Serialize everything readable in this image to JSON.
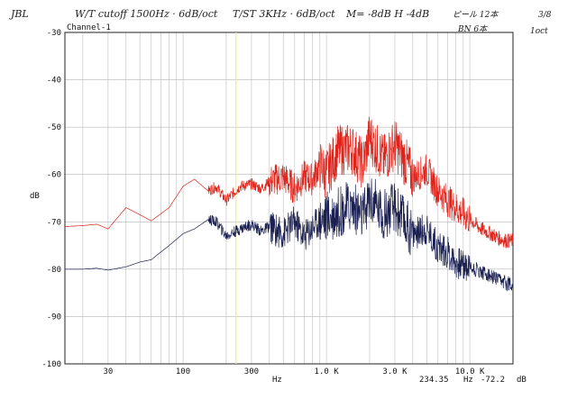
{
  "chart_data": {
    "type": "line",
    "title": "",
    "channel_label": "Channel-1",
    "xlabel": "Hz",
    "ylabel": "dB",
    "x_scale": "log",
    "xlim": [
      15,
      20000
    ],
    "ylim": [
      -100,
      -30
    ],
    "y_ticks": [
      -30,
      -40,
      -50,
      -60,
      -70,
      -80,
      -90,
      -100
    ],
    "y_tick_labels": [
      "-30",
      "-40",
      "-50",
      "-60",
      "-70",
      "-80",
      "-90",
      "-100"
    ],
    "x_ticks": [
      30,
      100,
      300,
      1000,
      3000,
      10000
    ],
    "x_tick_labels": [
      "30",
      "100",
      "300",
      "1.0 K",
      "3.0 K",
      "10.0 K"
    ],
    "grid": true,
    "legend": "none",
    "cursor": {
      "x": 234.35,
      "label": "234.35",
      "unit": "Hz",
      "value_label": "-72.2",
      "value_unit": "dB",
      "color": "#f0e68c"
    },
    "series": [
      {
        "color": "#e0241b",
        "x": [
          15,
          20,
          25,
          30,
          40,
          50,
          60,
          80,
          100,
          120,
          150,
          170,
          200,
          250,
          300,
          350,
          400,
          500,
          600,
          700,
          800,
          900,
          1000,
          1200,
          1500,
          1800,
          2000,
          2500,
          3000,
          3500,
          4000,
          5000,
          6000,
          7000,
          8000,
          10000,
          12000,
          14000,
          16000,
          18000,
          20000
        ],
        "values": [
          -71,
          -70.8,
          -70.5,
          -71.5,
          -67,
          -68.5,
          -69.8,
          -67,
          -62.5,
          -61,
          -63.5,
          -62.5,
          -65.5,
          -62.5,
          -62,
          -63,
          -61.5,
          -60.5,
          -63,
          -60.5,
          -61,
          -58,
          -60,
          -55,
          -54.5,
          -58,
          -52,
          -57,
          -53.5,
          -57,
          -60.5,
          -59,
          -63.5,
          -65.5,
          -67,
          -69.5,
          -71.5,
          -72.5,
          -73.5,
          -74,
          -74
        ]
      },
      {
        "color": "#1b2050",
        "x": [
          15,
          20,
          25,
          30,
          40,
          50,
          60,
          80,
          100,
          120,
          150,
          170,
          200,
          250,
          300,
          350,
          400,
          500,
          600,
          700,
          800,
          900,
          1000,
          1200,
          1500,
          1800,
          2000,
          2500,
          3000,
          3500,
          4000,
          5000,
          6000,
          7000,
          8000,
          10000,
          12000,
          14000,
          16000,
          18000,
          20000
        ],
        "values": [
          -80,
          -80,
          -79.8,
          -80.2,
          -79.5,
          -78.5,
          -78,
          -75,
          -72.5,
          -71.5,
          -69.5,
          -70,
          -73,
          -71.5,
          -70.5,
          -72,
          -71,
          -72.5,
          -70,
          -73,
          -71,
          -69.5,
          -69,
          -68,
          -66.5,
          -69,
          -65,
          -68.5,
          -67,
          -70,
          -72.5,
          -71.5,
          -75.5,
          -76.5,
          -78.5,
          -79.5,
          -80.5,
          -81.5,
          -82.5,
          -83,
          -83
        ]
      }
    ]
  },
  "annotations": {
    "top_left": "JBL",
    "wt": "W/T cutoff 1500Hz · 6dB/oct",
    "st": "T/ST 3KHz · 6dB/oct",
    "mh": "M= -8dB H -4dB",
    "right_top": "ピール 12本",
    "right_bottom": "BN 6本",
    "corner": "3/8",
    "corner_sub": "1oct"
  }
}
